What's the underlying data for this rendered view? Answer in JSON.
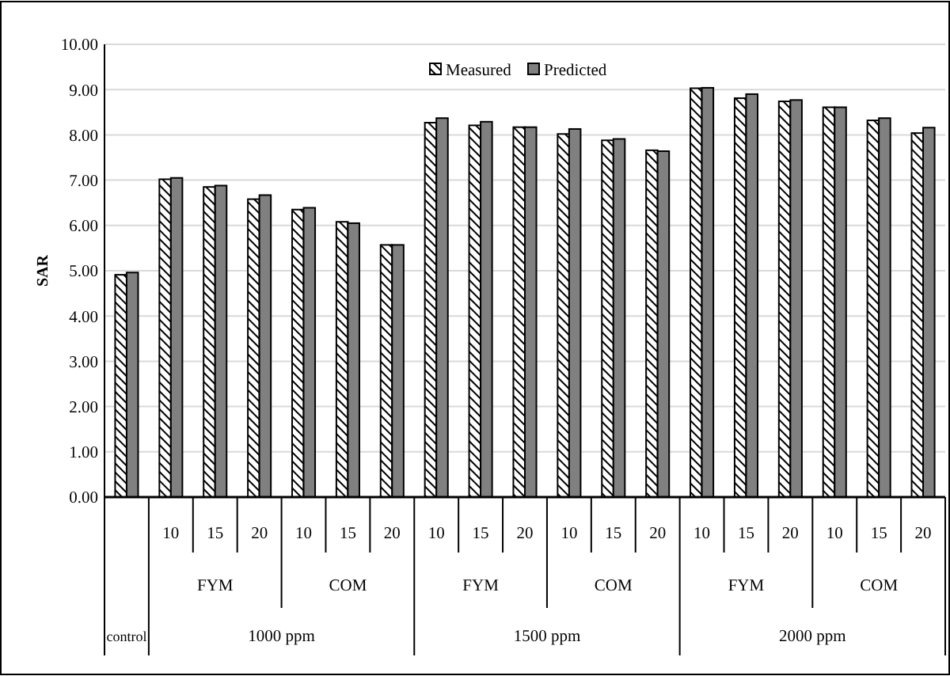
{
  "chart_data": {
    "type": "bar",
    "ylabel": "SAR",
    "categories": [
      null,
      "10",
      "15",
      "20",
      "10",
      "15",
      "20",
      "10",
      "15",
      "20",
      "10",
      "15",
      "20",
      "10",
      "15",
      "20",
      "10",
      "15",
      "20"
    ],
    "annotations": [
      "FYM",
      "COM",
      "FYM",
      "COM",
      "FYM",
      "COM",
      "control",
      "1000 ppm",
      "1500 ppm",
      "2000 ppm"
    ],
    "series": [
      {
        "name": "Measured",
        "color": "#000000",
        "values": [
          4.91,
          7.02,
          6.85,
          6.58,
          6.35,
          6.08,
          5.57,
          8.27,
          8.21,
          8.17,
          8.02,
          7.88,
          7.66,
          9.03,
          8.81,
          8.74,
          8.61,
          8.32,
          8.04
        ]
      },
      {
        "name": "Predicted",
        "color": "#808080",
        "values": [
          4.96,
          7.05,
          6.88,
          6.67,
          6.39,
          6.05,
          5.57,
          8.37,
          8.29,
          8.17,
          8.13,
          7.91,
          7.64,
          9.04,
          8.9,
          8.77,
          8.61,
          8.37,
          8.16
        ]
      }
    ],
    "ylim": [
      0,
      10
    ],
    "yticks": [
      {
        "value": 0,
        "label": "0.00"
      },
      {
        "value": 1,
        "label": "1.00"
      },
      {
        "value": 2,
        "label": "2.00"
      },
      {
        "value": 3,
        "label": "3.00"
      },
      {
        "value": 4,
        "label": "4.00"
      },
      {
        "value": 5,
        "label": "5.00"
      },
      {
        "value": 6,
        "label": "6.00"
      },
      {
        "value": 7,
        "label": "7.00"
      },
      {
        "value": 8,
        "label": "8.00"
      },
      {
        "value": 9,
        "label": "9.00"
      },
      {
        "value": 10,
        "label": "10.00"
      }
    ],
    "grid": "y",
    "legend": "top"
  }
}
